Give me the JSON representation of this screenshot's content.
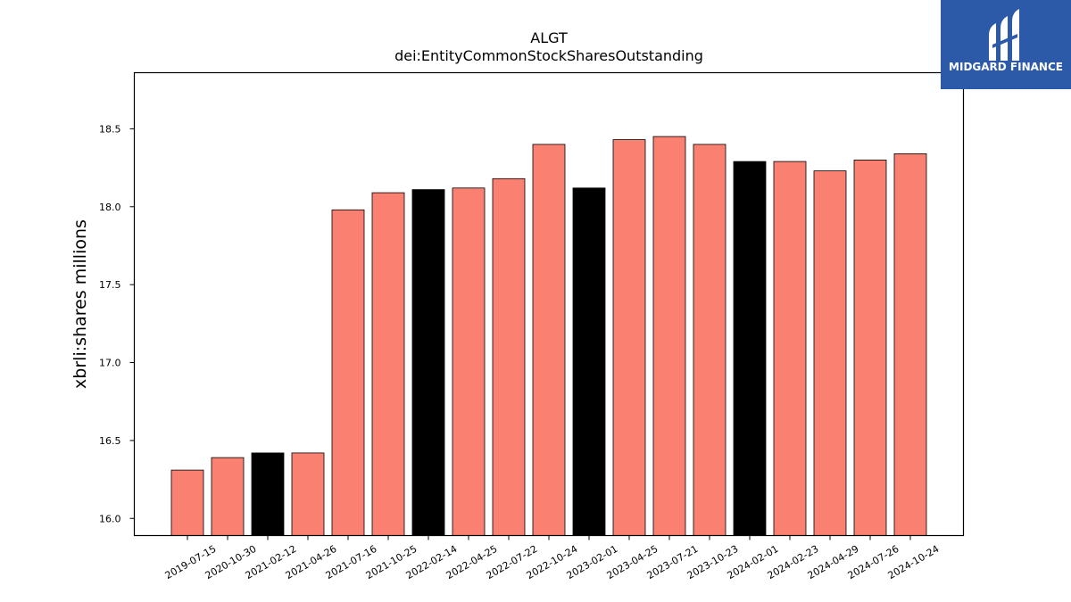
{
  "chart_data": {
    "type": "bar",
    "title": "ALGT",
    "subtitle": "dei:EntityCommonStockSharesOutstanding",
    "xlabel": "",
    "ylabel": "xbrli:shares millions",
    "ylim": [
      15.89,
      18.86
    ],
    "yticks": [
      "16.0",
      "16.5",
      "17.0",
      "17.5",
      "18.0",
      "18.5"
    ],
    "grid": false,
    "categories": [
      "2019-07-15",
      "2020-10-30",
      "2021-02-12",
      "2021-04-26",
      "2021-07-16",
      "2021-10-25",
      "2022-02-14",
      "2022-04-25",
      "2022-07-22",
      "2022-10-24",
      "2023-02-01",
      "2023-04-25",
      "2023-07-21",
      "2023-10-23",
      "2024-02-01",
      "2024-02-23",
      "2024-04-29",
      "2024-07-26",
      "2024-10-24"
    ],
    "values": [
      16.31,
      16.39,
      16.42,
      16.42,
      17.98,
      18.09,
      18.11,
      18.12,
      18.18,
      18.4,
      18.12,
      18.43,
      18.45,
      18.4,
      18.29,
      18.29,
      18.23,
      18.3,
      18.34
    ],
    "bar_colors": [
      "#fa8072",
      "#fa8072",
      "#000000",
      "#fa8072",
      "#fa8072",
      "#fa8072",
      "#000000",
      "#fa8072",
      "#fa8072",
      "#fa8072",
      "#000000",
      "#fa8072",
      "#fa8072",
      "#fa8072",
      "#000000",
      "#fa8072",
      "#fa8072",
      "#fa8072",
      "#fa8072"
    ],
    "edge_color": "#000000"
  },
  "logo": {
    "text": "MIDGARD FINANCE",
    "background": "#2c5aa8"
  }
}
